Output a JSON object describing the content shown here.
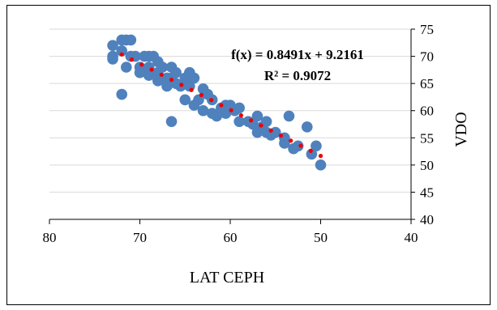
{
  "chart_data": {
    "type": "scatter",
    "xlabel": "LAT CEPH",
    "ylabel": "VDO",
    "xlim": [
      80,
      40
    ],
    "ylim": [
      40,
      75
    ],
    "x_reversed": true,
    "y_axis_side": "right",
    "xticks": [
      "80",
      "70",
      "60",
      "50",
      "40"
    ],
    "yticks": [
      "40",
      "45",
      "50",
      "55",
      "60",
      "65",
      "70",
      "75"
    ],
    "grid": "horizontal",
    "trendline": {
      "type": "linear",
      "slope": 0.8491,
      "intercept": 9.2161,
      "x_range": [
        72,
        50
      ],
      "style": "dotted",
      "color": "#ee0000",
      "equation": "f(x) = 0.8491x + 9.2161",
      "r2": "R² = 0.9072"
    },
    "marker_color": "#4f81bd",
    "series": [
      {
        "points": [
          [
            73,
            72
          ],
          [
            73,
            69.5
          ],
          [
            73,
            70
          ],
          [
            72,
            73
          ],
          [
            71.5,
            73
          ],
          [
            71,
            73
          ],
          [
            72,
            71
          ],
          [
            71.5,
            68
          ],
          [
            71,
            70
          ],
          [
            70.5,
            70
          ],
          [
            70,
            68
          ],
          [
            70,
            67
          ],
          [
            69.5,
            70
          ],
          [
            69,
            70
          ],
          [
            69,
            68
          ],
          [
            69,
            66.5
          ],
          [
            68.5,
            70
          ],
          [
            68,
            69
          ],
          [
            68,
            67
          ],
          [
            68,
            65.5
          ],
          [
            67.5,
            68
          ],
          [
            67,
            66
          ],
          [
            67,
            64.5
          ],
          [
            66.5,
            68
          ],
          [
            66.5,
            66
          ],
          [
            66,
            67
          ],
          [
            66,
            65
          ],
          [
            65.5,
            64.5
          ],
          [
            65,
            66
          ],
          [
            65,
            62
          ],
          [
            64.5,
            67
          ],
          [
            64.5,
            64.5
          ],
          [
            64,
            66
          ],
          [
            64,
            61
          ],
          [
            63.5,
            62
          ],
          [
            63,
            64
          ],
          [
            63,
            60
          ],
          [
            62.5,
            63
          ],
          [
            62,
            62
          ],
          [
            62,
            59.5
          ],
          [
            61.5,
            59
          ],
          [
            61,
            60.5
          ],
          [
            60.5,
            61
          ],
          [
            60.5,
            59.5
          ],
          [
            60,
            61
          ],
          [
            59.5,
            60
          ],
          [
            59,
            60.5
          ],
          [
            59,
            58
          ],
          [
            58,
            58
          ],
          [
            57.5,
            57.5
          ],
          [
            57,
            56
          ],
          [
            57,
            59
          ],
          [
            56.5,
            57
          ],
          [
            56,
            56
          ],
          [
            56,
            58
          ],
          [
            55.5,
            55.5
          ],
          [
            55,
            56
          ],
          [
            54,
            54
          ],
          [
            54,
            55
          ],
          [
            53.5,
            59
          ],
          [
            53,
            53
          ],
          [
            52.5,
            53.5
          ],
          [
            51.5,
            57
          ],
          [
            51,
            52
          ],
          [
            50.5,
            53.5
          ],
          [
            50,
            50
          ],
          [
            72,
            63
          ],
          [
            66.5,
            58
          ]
        ]
      }
    ]
  }
}
